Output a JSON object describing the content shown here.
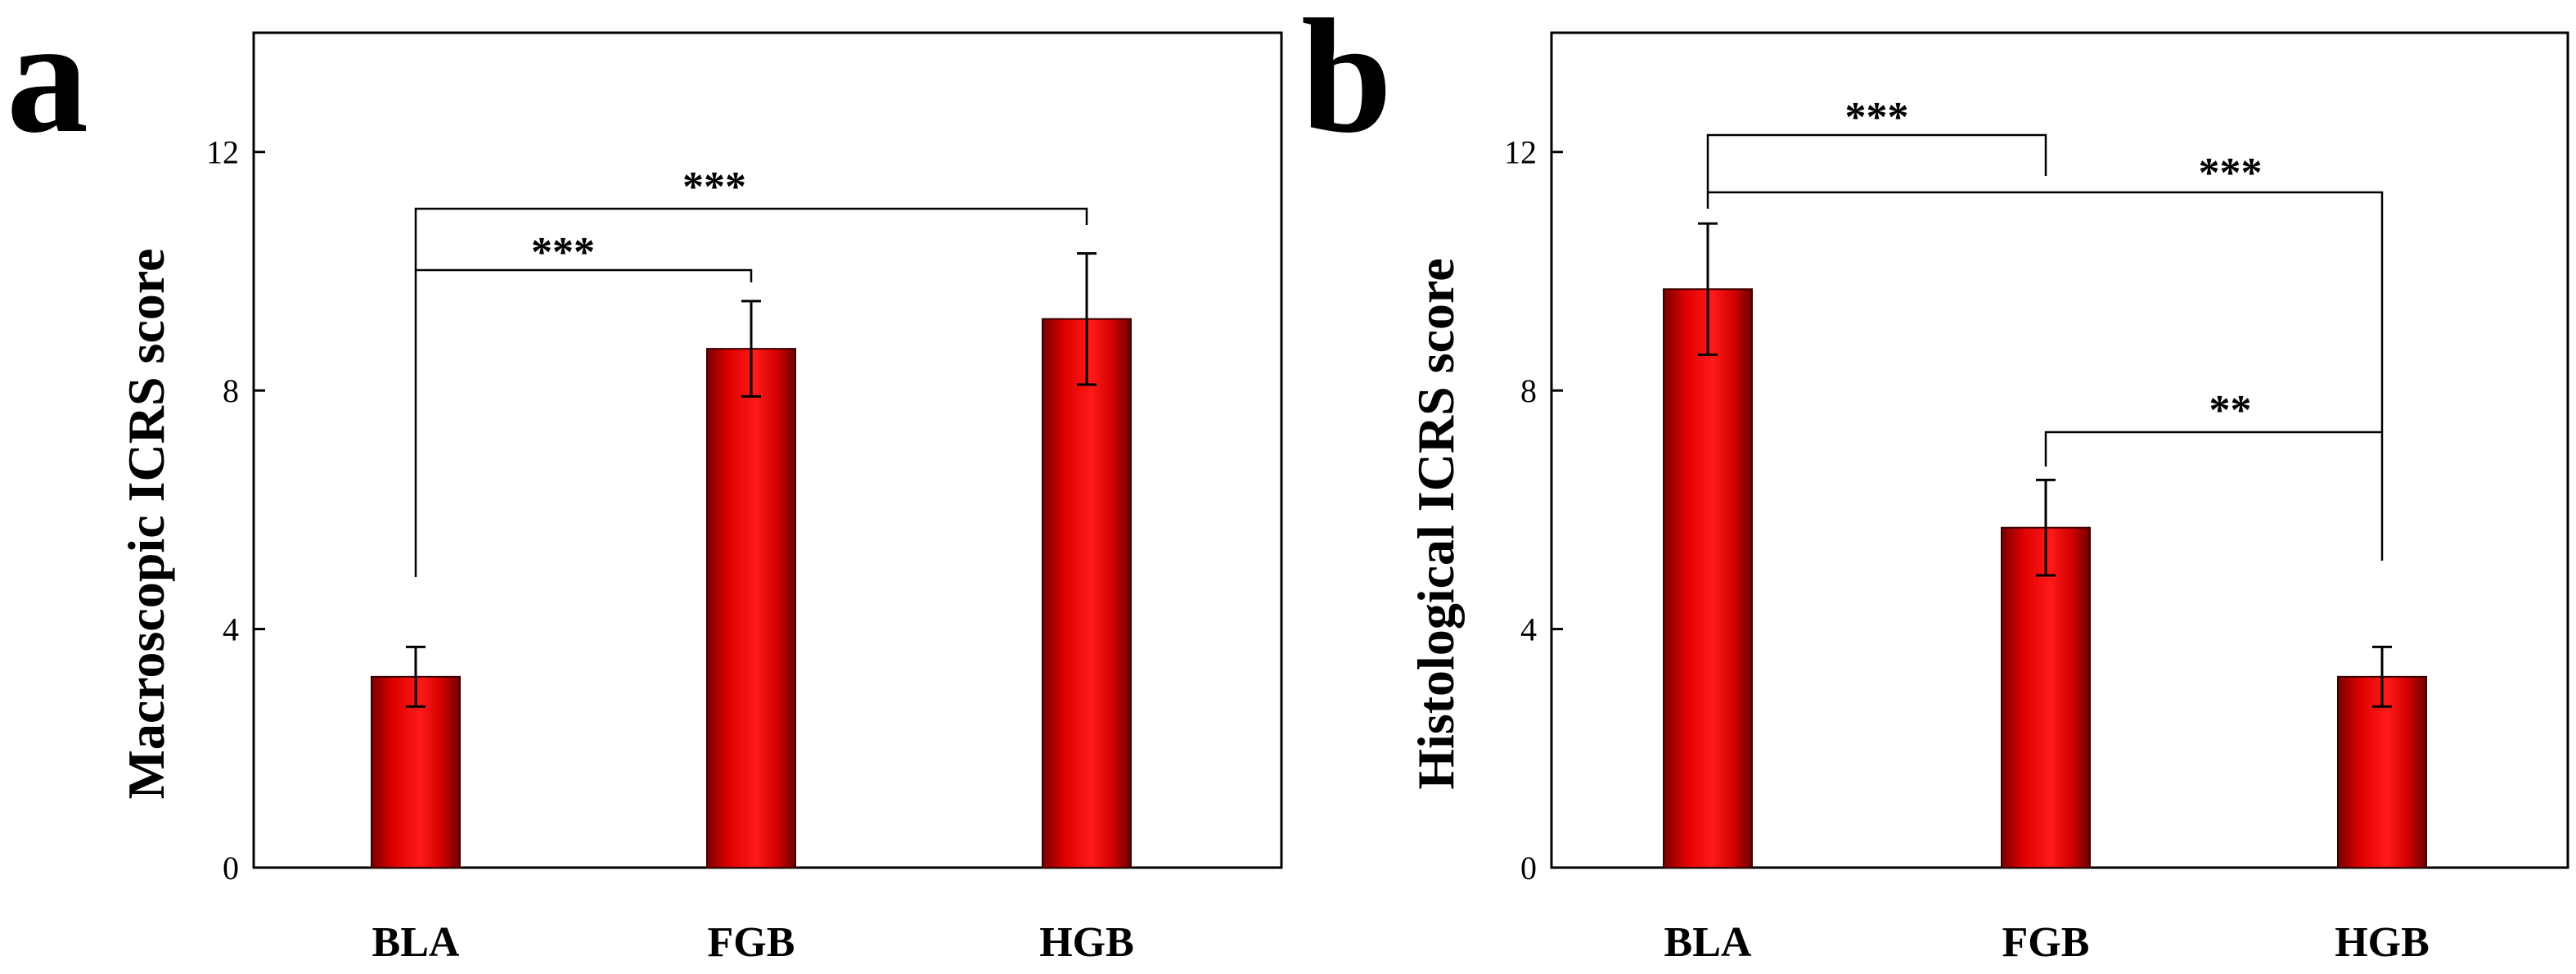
{
  "chart_data": [
    {
      "panel": "a",
      "type": "bar",
      "ylabel": "Macroscopic ICRS score",
      "categories": [
        "BLA",
        "FGB",
        "HGB"
      ],
      "values": [
        3.2,
        8.7,
        9.2
      ],
      "errors": [
        0.5,
        0.8,
        1.1
      ],
      "ylim": [
        0,
        14
      ],
      "yticks": [
        "0",
        "4",
        "8",
        "12"
      ],
      "significance": [
        {
          "from": "BLA",
          "to": "FGB",
          "label": "***"
        },
        {
          "from": "BLA",
          "to": "HGB",
          "label": "***"
        }
      ]
    },
    {
      "panel": "b",
      "type": "bar",
      "ylabel": "Histological ICRS score",
      "categories": [
        "BLA",
        "FGB",
        "HGB"
      ],
      "values": [
        9.7,
        5.7,
        3.2
      ],
      "errors": [
        1.1,
        0.8,
        0.5
      ],
      "ylim": [
        0,
        14
      ],
      "yticks": [
        "0",
        "4",
        "8",
        "12"
      ],
      "significance": [
        {
          "from": "BLA",
          "to": "FGB",
          "label": "***"
        },
        {
          "from": "BLA",
          "to": "HGB",
          "label": "***"
        },
        {
          "from": "FGB",
          "to": "HGB",
          "label": "**"
        }
      ]
    }
  ],
  "colors": {
    "bar_dark": "#8a0000",
    "bar_mid": "#ff0000",
    "bar_light": "#e00000"
  }
}
